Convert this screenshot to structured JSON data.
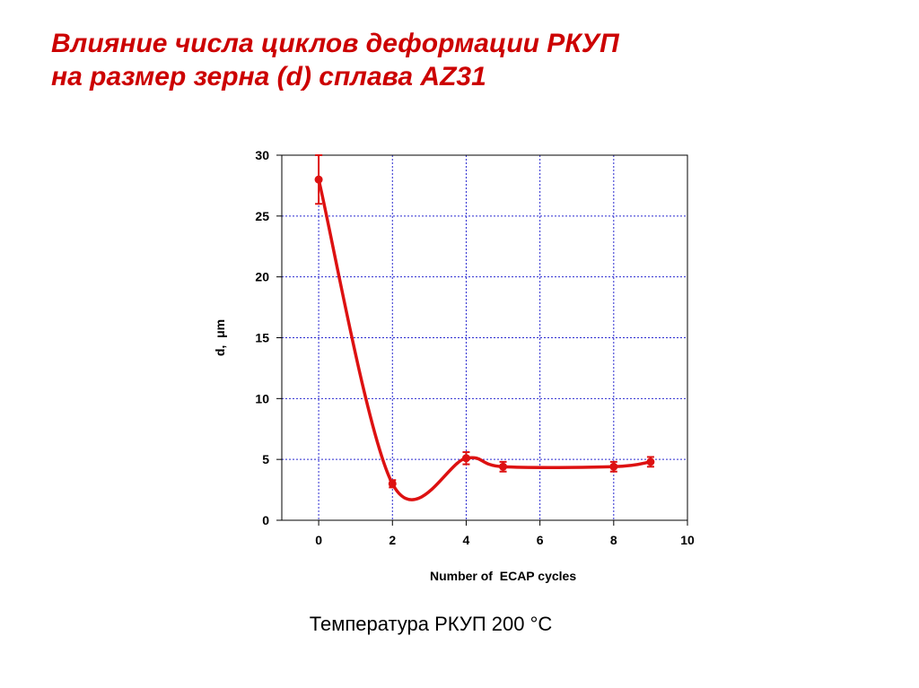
{
  "slide": {
    "title_line1": "Влияние числа циклов деформации РКУП",
    "title_line2": "на размер зерна (d) сплава AZ31",
    "caption": "Температура РКУП 200 °С",
    "title_color": "#cc0000"
  },
  "chart_data": {
    "type": "line",
    "xlabel": "Number of  ECAP cycles",
    "ylabel": "d,  μm",
    "xlim": [
      -1,
      10
    ],
    "ylim": [
      0,
      30
    ],
    "xticks": [
      0,
      2,
      4,
      6,
      8,
      10
    ],
    "yticks": [
      0,
      5,
      10,
      15,
      20,
      25,
      30
    ],
    "grid": true,
    "series": [
      {
        "color": "#dd1111",
        "points": [
          {
            "x": 0,
            "y": 28.0,
            "err": 2.0
          },
          {
            "x": 2,
            "y": 3.0,
            "err": 0.3
          },
          {
            "x": 4,
            "y": 5.1,
            "err": 0.5
          },
          {
            "x": 5,
            "y": 4.4,
            "err": 0.4
          },
          {
            "x": 8,
            "y": 4.4,
            "err": 0.4
          },
          {
            "x": 9,
            "y": 4.8,
            "err": 0.4
          }
        ]
      }
    ]
  }
}
